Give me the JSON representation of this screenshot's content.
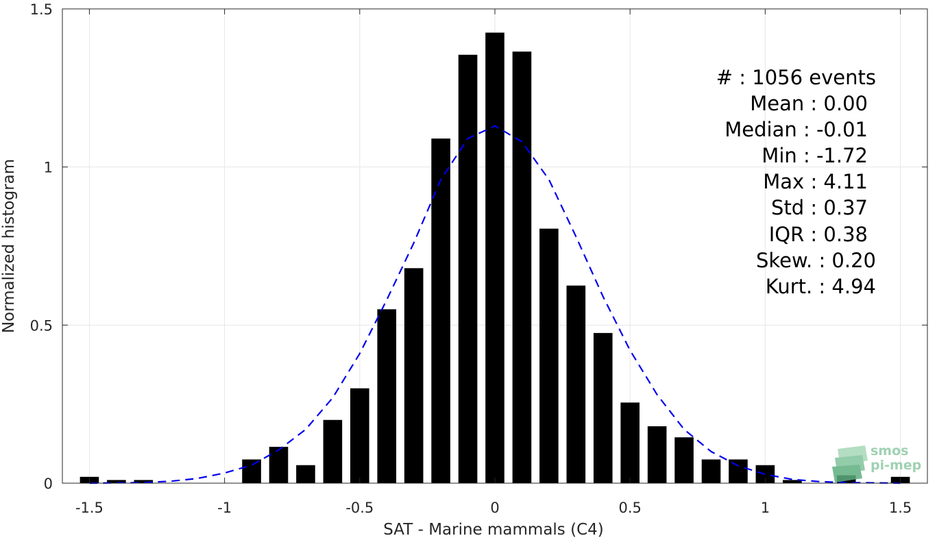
{
  "chart_data": {
    "type": "bar",
    "title": "",
    "xlabel": "SAT - Marine mammals (C4)",
    "ylabel": "Normalized histogram",
    "xlim": [
      -1.6,
      1.6
    ],
    "ylim": [
      0,
      1.5
    ],
    "grid": true,
    "xticks": [
      -1.5,
      -1,
      -0.5,
      0,
      0.5,
      1,
      1.5
    ],
    "xtick_labels": [
      "-1.5",
      "-1",
      "-0.5",
      "0",
      "0.5",
      "1",
      "1.5"
    ],
    "yticks": [
      0,
      0.5,
      1,
      1.5
    ],
    "ytick_labels": [
      "0",
      "0.5",
      "1",
      "1.5"
    ],
    "bar_width": 0.07,
    "bar_color": "#000000",
    "x": [
      -1.5,
      -1.4,
      -1.3,
      -1.2,
      -1.1,
      -1.0,
      -0.9,
      -0.8,
      -0.7,
      -0.6,
      -0.5,
      -0.4,
      -0.3,
      -0.2,
      -0.1,
      0.0,
      0.1,
      0.2,
      0.3,
      0.4,
      0.5,
      0.6,
      0.7,
      0.8,
      0.9,
      1.0,
      1.1,
      1.2,
      1.3,
      1.4,
      1.5
    ],
    "values": [
      0.02,
      0.01,
      0.01,
      0,
      0,
      0,
      0.075,
      0.115,
      0.057,
      0.2,
      0.3,
      0.55,
      0.68,
      1.09,
      1.355,
      1.425,
      1.365,
      0.805,
      0.625,
      0.475,
      0.255,
      0.18,
      0.145,
      0.075,
      0.075,
      0.057,
      0.01,
      0,
      0.025,
      0,
      0.02
    ],
    "fit_curve": {
      "style": "dashed",
      "color": "#0000ee",
      "description": "normal fit",
      "x": [
        -1.5,
        -1.4,
        -1.3,
        -1.2,
        -1.1,
        -1.0,
        -0.9,
        -0.8,
        -0.7,
        -0.6,
        -0.5,
        -0.4,
        -0.3,
        -0.2,
        -0.1,
        0.0,
        0.1,
        0.2,
        0.3,
        0.4,
        0.5,
        0.6,
        0.7,
        0.8,
        0.9,
        1.0,
        1.1,
        1.2,
        1.3,
        1.4,
        1.5
      ],
      "y": [
        0.0,
        0.001,
        0.002,
        0.006,
        0.015,
        0.032,
        0.057,
        0.105,
        0.17,
        0.27,
        0.41,
        0.58,
        0.76,
        0.96,
        1.09,
        1.13,
        1.08,
        0.96,
        0.78,
        0.59,
        0.42,
        0.28,
        0.17,
        0.1,
        0.055,
        0.028,
        0.012,
        0.005,
        0.002,
        0.001,
        0.0
      ]
    },
    "stats": [
      {
        "label": "#  : 1056 events"
      },
      {
        "label": "Mean : 0.00"
      },
      {
        "label": "Median : -0.01"
      },
      {
        "label": "Min : -1.72"
      },
      {
        "label": "Max : 4.11"
      },
      {
        "label": "Std : 0.37"
      },
      {
        "label": "IQR : 0.38"
      },
      {
        "label": "Skew. : 0.20"
      },
      {
        "label": "Kurt. : 4.94"
      }
    ]
  },
  "logo": {
    "line1": "smos",
    "line2": "pi-mep"
  }
}
